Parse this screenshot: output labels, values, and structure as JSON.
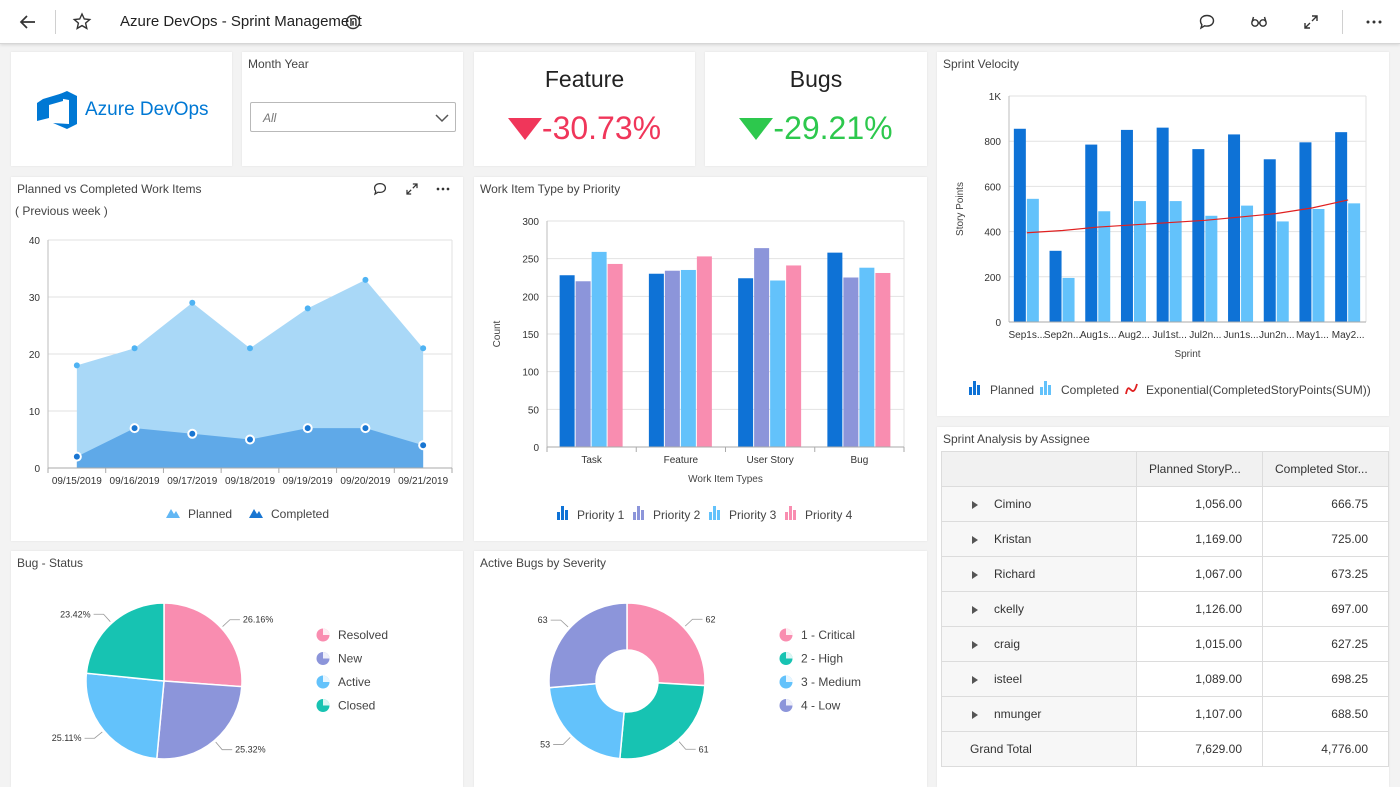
{
  "app": {
    "title": "Azure DevOps - Sprint Management"
  },
  "logo": {
    "text": "Azure DevOps",
    "color": "#0078d4"
  },
  "filter": {
    "label": "Month Year",
    "value": "All"
  },
  "kpis": [
    {
      "title": "Feature",
      "value": "-30.73%",
      "color": "#f0365a",
      "direction": "down"
    },
    {
      "title": "Bugs",
      "value": "-29.21%",
      "color": "#2dc84d",
      "direction": "down"
    }
  ],
  "planned_vs_completed": {
    "title": "Planned vs Completed Work Items",
    "subtitle": "( Previous week )",
    "chart_data": {
      "type": "area",
      "categories": [
        "09/15/2019",
        "09/16/2019",
        "09/17/2019",
        "09/18/2019",
        "09/19/2019",
        "09/20/2019",
        "09/21/2019"
      ],
      "series": [
        {
          "name": "Planned",
          "values": [
            18,
            21,
            29,
            21,
            28,
            33,
            21
          ],
          "color": "#a9d8f7"
        },
        {
          "name": "Completed",
          "values": [
            2,
            7,
            6,
            5,
            7,
            7,
            4
          ],
          "color": "#5fa9e8"
        }
      ],
      "ylim": [
        0,
        40
      ],
      "yticks": [
        "0",
        "10",
        "20",
        "30",
        "40"
      ],
      "legend": "bottom"
    }
  },
  "priority_chart": {
    "title": "Work Item Type by Priority",
    "chart_data": {
      "type": "bar",
      "categories": [
        "Task",
        "Feature",
        "User Story",
        "Bug"
      ],
      "series": [
        {
          "name": "Priority 1",
          "values": [
            228,
            230,
            224,
            258
          ],
          "color": "#0e72d6"
        },
        {
          "name": "Priority 2",
          "values": [
            220,
            234,
            264,
            225
          ],
          "color": "#8c95da"
        },
        {
          "name": "Priority 3",
          "values": [
            259,
            235,
            221,
            238
          ],
          "color": "#63c2fb"
        },
        {
          "name": "Priority 4",
          "values": [
            243,
            253,
            241,
            231
          ],
          "color": "#f98db0"
        }
      ],
      "xlabel": "Work Item Types",
      "ylabel": "Count",
      "ylim": [
        0,
        300
      ],
      "yticks": [
        "0",
        "50",
        "100",
        "150",
        "200",
        "250",
        "300"
      ],
      "legend": "bottom"
    }
  },
  "velocity": {
    "title": "Sprint Velocity",
    "chart_data": {
      "type": "bar",
      "categories": [
        "Sep1s...",
        "Sep2n...",
        "Aug1s...",
        "Aug2...",
        "Jul1st...",
        "Jul2n...",
        "Jun1s...",
        "Jun2n...",
        "May1...",
        "May2..."
      ],
      "series": [
        {
          "name": "Planned",
          "values": [
            855,
            315,
            785,
            850,
            860,
            765,
            830,
            720,
            795,
            840
          ],
          "color": "#0e72d6"
        },
        {
          "name": "Completed",
          "values": [
            545,
            195,
            490,
            535,
            535,
            470,
            515,
            445,
            500,
            525
          ],
          "color": "#63c2fb"
        },
        {
          "name": "Exponential(CompletedStoryPoints(SUM))",
          "values": [
            395,
            405,
            420,
            430,
            440,
            450,
            465,
            480,
            505,
            540
          ],
          "color": "#e02020"
        }
      ],
      "xlabel": "Sprint",
      "ylabel": "Story Points",
      "ylim": [
        0,
        1000
      ],
      "yticks": [
        "0",
        "200",
        "400",
        "600",
        "800",
        "1K"
      ],
      "legend": "bottom"
    }
  },
  "bug_status": {
    "title": "Bug - Status",
    "chart_data": {
      "type": "pie",
      "categories": [
        "Resolved",
        "New",
        "Active",
        "Closed"
      ],
      "values": [
        26.16,
        25.32,
        25.11,
        23.42
      ],
      "labels": [
        "26.16%",
        "25.32%",
        "25.11%",
        "23.42%"
      ],
      "colors": [
        "#f98db0",
        "#8c95da",
        "#63c2fb",
        "#17c3b2"
      ],
      "legend": "right"
    }
  },
  "bug_severity": {
    "title": "Active Bugs by Severity",
    "chart_data": {
      "type": "pie",
      "categories": [
        "1 - Critical",
        "2 - High",
        "3 - Medium",
        "4 - Low"
      ],
      "values": [
        62,
        61,
        53,
        63
      ],
      "labels": [
        "62",
        "61",
        "53",
        "63"
      ],
      "colors": [
        "#f98db0",
        "#17c3b2",
        "#63c2fb",
        "#8c95da"
      ],
      "legend": "right"
    }
  },
  "assignee": {
    "title": "Sprint Analysis by Assignee",
    "columns": [
      "",
      "Planned StoryP...",
      "Completed Stor..."
    ],
    "rows": [
      {
        "name": "Cimino",
        "planned": "1,056.00",
        "completed": "666.75"
      },
      {
        "name": "Kristan",
        "planned": "1,169.00",
        "completed": "725.00"
      },
      {
        "name": "Richard",
        "planned": "1,067.00",
        "completed": "673.25"
      },
      {
        "name": "ckelly",
        "planned": "1,126.00",
        "completed": "697.00"
      },
      {
        "name": "craig",
        "planned": "1,015.00",
        "completed": "627.25"
      },
      {
        "name": "isteel",
        "planned": "1,089.00",
        "completed": "698.25"
      },
      {
        "name": "nmunger",
        "planned": "1,107.00",
        "completed": "688.50"
      }
    ],
    "total": {
      "label": "Grand Total",
      "planned": "7,629.00",
      "completed": "4,776.00"
    }
  }
}
